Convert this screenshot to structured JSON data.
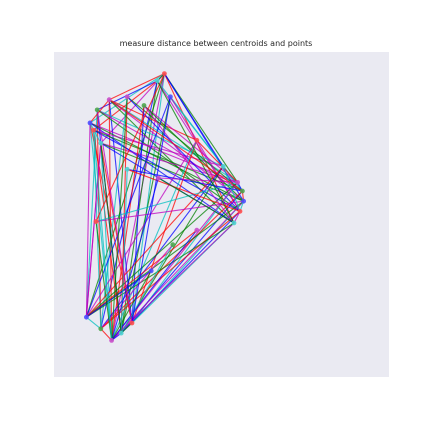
{
  "chart_data": {
    "type": "scatter",
    "title": "measure distance between centroids and points",
    "xlabel": "",
    "ylabel": "",
    "xlim": [
      0,
      10
    ],
    "ylim": [
      0,
      10
    ],
    "grid": false,
    "axes_visible": false,
    "background": "#eaeaf2",
    "edge_colors": [
      "#ff0000",
      "#00bfbf",
      "#bf00bf",
      "#008000",
      "#0000ff"
    ],
    "point_colors": [
      "#ff4d4d",
      "#4dd2d2",
      "#c94dc9",
      "#4da64d",
      "#4d4dff"
    ],
    "points": [
      {
        "x": 3.85,
        "y": 9.6
      },
      {
        "x": 3.55,
        "y": 9.35
      },
      {
        "x": 1.55,
        "y": 8.7
      },
      {
        "x": 1.05,
        "y": 8.35
      },
      {
        "x": 0.75,
        "y": 7.9
      },
      {
        "x": 0.9,
        "y": 7.65
      },
      {
        "x": 1.2,
        "y": 7.2
      },
      {
        "x": 2.3,
        "y": 8.8
      },
      {
        "x": 3.0,
        "y": 8.5
      },
      {
        "x": 4.1,
        "y": 8.8
      },
      {
        "x": 5.2,
        "y": 7.3
      },
      {
        "x": 6.3,
        "y": 6.4
      },
      {
        "x": 6.9,
        "y": 5.85
      },
      {
        "x": 7.1,
        "y": 5.55
      },
      {
        "x": 7.15,
        "y": 5.2
      },
      {
        "x": 7.0,
        "y": 4.85
      },
      {
        "x": 6.75,
        "y": 4.45
      },
      {
        "x": 5.2,
        "y": 4.2
      },
      {
        "x": 4.2,
        "y": 3.7
      },
      {
        "x": 3.3,
        "y": 2.8
      },
      {
        "x": 2.5,
        "y": 1.0
      },
      {
        "x": 2.05,
        "y": 0.65
      },
      {
        "x": 1.65,
        "y": 0.4
      },
      {
        "x": 1.2,
        "y": 0.8
      },
      {
        "x": 0.6,
        "y": 1.2
      },
      {
        "x": 1.0,
        "y": 4.5
      },
      {
        "x": 2.3,
        "y": 6.3
      },
      {
        "x": 3.6,
        "y": 6.0
      }
    ],
    "edges": [
      [
        0,
        2
      ],
      [
        0,
        4
      ],
      [
        0,
        6
      ],
      [
        0,
        12
      ],
      [
        0,
        14
      ],
      [
        0,
        16
      ],
      [
        0,
        20
      ],
      [
        0,
        22
      ],
      [
        0,
        24
      ],
      [
        1,
        3
      ],
      [
        1,
        5
      ],
      [
        1,
        13
      ],
      [
        1,
        15
      ],
      [
        1,
        21
      ],
      [
        1,
        23
      ],
      [
        2,
        10
      ],
      [
        2,
        12
      ],
      [
        2,
        14
      ],
      [
        2,
        16
      ],
      [
        2,
        20
      ],
      [
        2,
        22
      ],
      [
        3,
        11
      ],
      [
        3,
        13
      ],
      [
        3,
        15
      ],
      [
        3,
        21
      ],
      [
        3,
        23
      ],
      [
        3,
        24
      ],
      [
        4,
        12
      ],
      [
        4,
        14
      ],
      [
        4,
        16
      ],
      [
        4,
        20
      ],
      [
        4,
        22
      ],
      [
        5,
        11
      ],
      [
        5,
        13
      ],
      [
        5,
        15
      ],
      [
        5,
        21
      ],
      [
        5,
        23
      ],
      [
        6,
        12
      ],
      [
        6,
        14
      ],
      [
        6,
        16
      ],
      [
        6,
        20
      ],
      [
        6,
        22
      ],
      [
        6,
        24
      ],
      [
        7,
        13
      ],
      [
        7,
        15
      ],
      [
        7,
        21
      ],
      [
        7,
        23
      ],
      [
        8,
        12
      ],
      [
        8,
        14
      ],
      [
        8,
        20
      ],
      [
        8,
        22
      ],
      [
        9,
        13
      ],
      [
        9,
        15
      ],
      [
        9,
        21
      ],
      [
        9,
        24
      ],
      [
        10,
        20
      ],
      [
        10,
        22
      ],
      [
        10,
        24
      ],
      [
        11,
        21
      ],
      [
        11,
        23
      ],
      [
        11,
        24
      ],
      [
        12,
        20
      ],
      [
        12,
        22
      ],
      [
        12,
        24
      ],
      [
        13,
        21
      ],
      [
        13,
        23
      ],
      [
        14,
        20
      ],
      [
        14,
        22
      ],
      [
        14,
        24
      ],
      [
        15,
        21
      ],
      [
        15,
        23
      ],
      [
        16,
        20
      ],
      [
        16,
        22
      ],
      [
        16,
        24
      ],
      [
        17,
        22
      ],
      [
        17,
        24
      ],
      [
        18,
        21
      ],
      [
        18,
        23
      ],
      [
        19,
        22
      ],
      [
        19,
        24
      ],
      [
        25,
        0
      ],
      [
        25,
        12
      ],
      [
        25,
        14
      ],
      [
        25,
        22
      ],
      [
        26,
        13
      ],
      [
        26,
        15
      ],
      [
        26,
        21
      ],
      [
        27,
        12
      ],
      [
        27,
        16
      ],
      [
        27,
        22
      ],
      [
        2,
        4
      ],
      [
        4,
        6
      ],
      [
        6,
        24
      ],
      [
        0,
        1
      ],
      [
        12,
        13
      ],
      [
        13,
        14
      ],
      [
        14,
        15
      ],
      [
        15,
        16
      ],
      [
        20,
        21
      ],
      [
        21,
        22
      ],
      [
        22,
        23
      ],
      [
        23,
        24
      ],
      [
        3,
        20
      ],
      [
        7,
        22
      ],
      [
        9,
        20
      ],
      [
        10,
        12
      ],
      [
        11,
        15
      ],
      [
        8,
        16
      ],
      [
        1,
        16
      ],
      [
        0,
        11
      ],
      [
        2,
        13
      ],
      [
        5,
        22
      ],
      [
        4,
        24
      ],
      [
        6,
        21
      ]
    ]
  }
}
